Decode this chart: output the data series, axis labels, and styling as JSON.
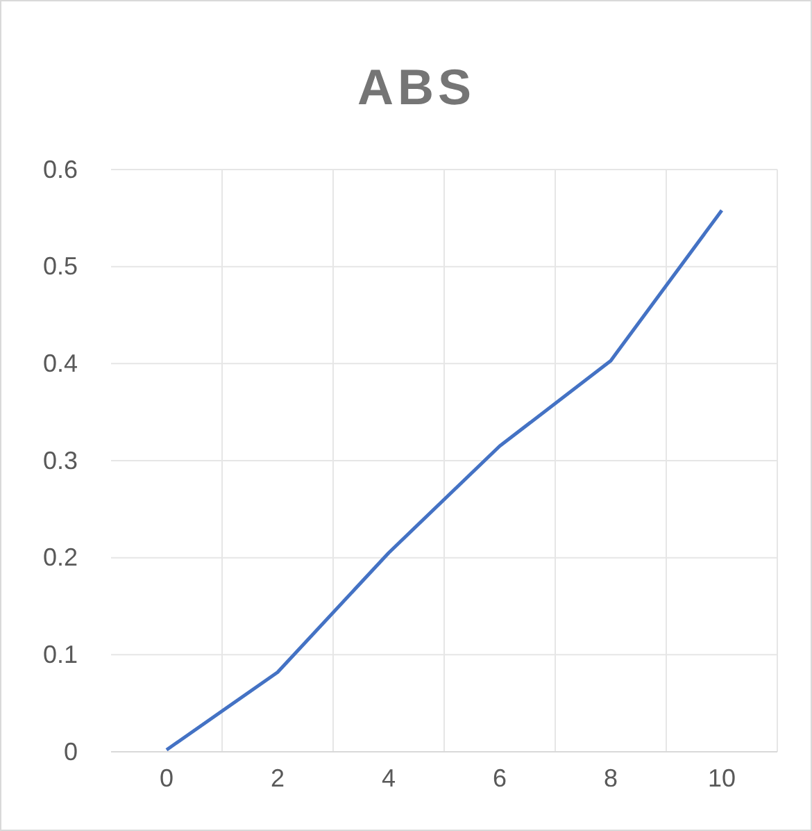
{
  "chart_data": {
    "type": "line",
    "title": "ABS",
    "categories": [
      "0",
      "2",
      "4",
      "6",
      "8",
      "10"
    ],
    "series": [
      {
        "color": "#4472c4",
        "values": [
          0.002,
          0.082,
          0.205,
          0.315,
          0.403,
          0.558
        ]
      }
    ],
    "ylim": [
      0,
      0.6
    ],
    "yticks": [
      0,
      0.1,
      0.2,
      0.3,
      0.4,
      0.5,
      0.6
    ],
    "grid": true
  }
}
